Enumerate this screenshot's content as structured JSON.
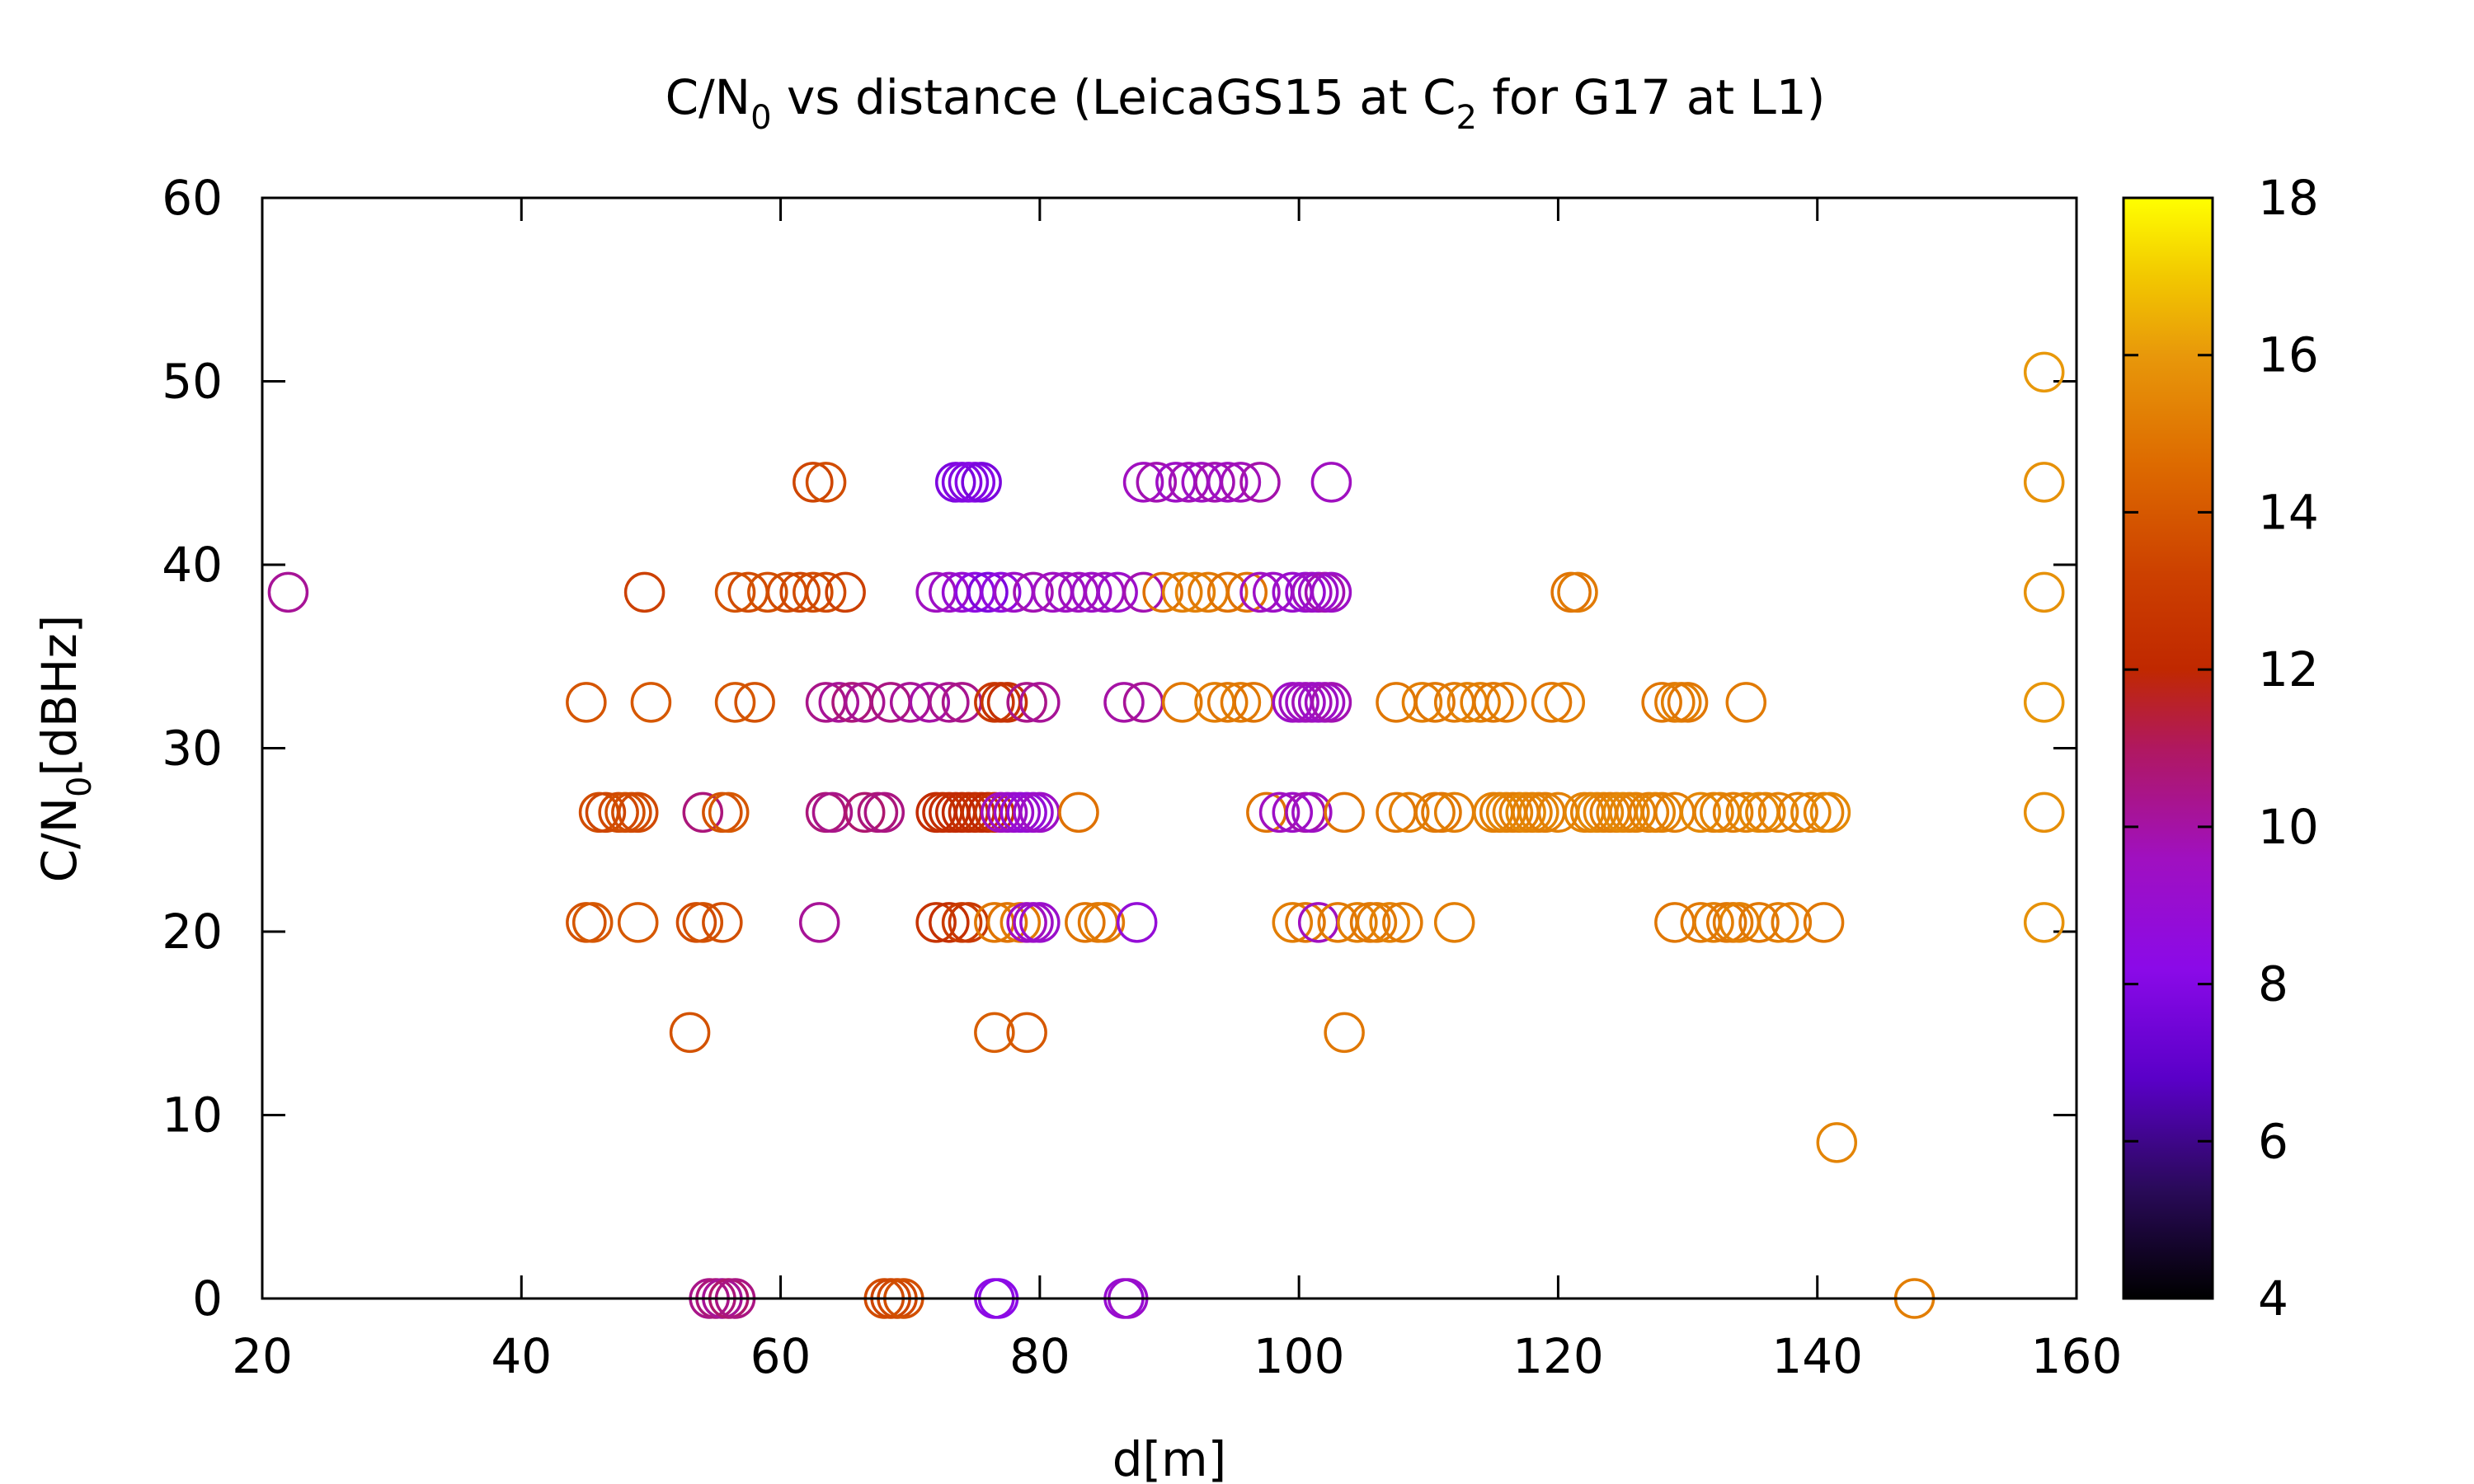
{
  "chart_data": {
    "type": "scatter",
    "title": {
      "pre": "C/N",
      "sub": "0",
      "mid": " vs distance (LeicaGS15 at C",
      "sub2": "2",
      "post": " for G17 at L1)"
    },
    "xlabel": "d[m]",
    "ylabel": {
      "pre": "C/N",
      "sub": "0",
      "post": "[dBHz]"
    },
    "xlim": [
      20,
      160
    ],
    "ylim": [
      0,
      60
    ],
    "xticks": [
      20,
      40,
      60,
      80,
      100,
      120,
      140,
      160
    ],
    "yticks": [
      0,
      10,
      20,
      30,
      40,
      50,
      60
    ],
    "marker": "open-circle",
    "colorbar": {
      "range": [
        4,
        18
      ],
      "ticks": [
        4,
        6,
        8,
        10,
        12,
        14,
        16,
        18
      ],
      "palette": [
        [
          4,
          "#000000"
        ],
        [
          5.4,
          "#2a0a5a"
        ],
        [
          6.8,
          "#5a00c8"
        ],
        [
          8.2,
          "#8b0ae8"
        ],
        [
          9.6,
          "#a010c0"
        ],
        [
          11,
          "#b01860"
        ],
        [
          12,
          "#c02800"
        ],
        [
          13.2,
          "#cc4000"
        ],
        [
          14.6,
          "#dd6a00"
        ],
        [
          16,
          "#e8980a"
        ],
        [
          17,
          "#f2c800"
        ],
        [
          18,
          "#ffff00"
        ]
      ]
    },
    "points": [
      [
        22,
        38.5,
        10.2
      ],
      [
        49.5,
        38.5,
        13.2
      ],
      [
        56.5,
        38.5,
        13.8
      ],
      [
        57.5,
        38.5,
        13.6
      ],
      [
        59,
        38.5,
        13.7
      ],
      [
        60.5,
        38.5,
        13.6
      ],
      [
        61.5,
        38.5,
        13.4
      ],
      [
        62.5,
        38.5,
        13.6
      ],
      [
        63.5,
        38.5,
        13.5
      ],
      [
        65,
        38.5,
        13.2
      ],
      [
        72,
        38.5,
        9.6
      ],
      [
        73,
        38.5,
        9.4
      ],
      [
        74,
        38.5,
        9.0
      ],
      [
        75,
        38.5,
        8.4
      ],
      [
        76,
        38.5,
        7.8
      ],
      [
        77,
        38.5,
        8.6
      ],
      [
        78,
        38.5,
        9.4
      ],
      [
        79.5,
        38.5,
        9.8
      ],
      [
        81,
        38.5,
        9.6
      ],
      [
        82,
        38.5,
        9.5
      ],
      [
        83,
        38.5,
        9.6
      ],
      [
        84,
        38.5,
        9.4
      ],
      [
        85,
        38.5,
        9.6
      ],
      [
        86,
        38.5,
        9.3
      ],
      [
        88,
        38.5,
        9.8
      ],
      [
        89.5,
        38.5,
        14.8
      ],
      [
        91,
        38.5,
        15.2
      ],
      [
        92,
        38.5,
        15.3
      ],
      [
        93,
        38.5,
        15.1
      ],
      [
        94.5,
        38.5,
        14.8
      ],
      [
        96,
        38.5,
        14.9
      ],
      [
        97,
        38.5,
        9.6
      ],
      [
        98,
        38.5,
        9.4
      ],
      [
        99.5,
        38.5,
        9.2
      ],
      [
        100.5,
        38.5,
        9.0
      ],
      [
        101,
        38.5,
        9.5
      ],
      [
        101.5,
        38.5,
        9.2
      ],
      [
        102,
        38.5,
        9.8
      ],
      [
        102.5,
        38.5,
        9.4
      ],
      [
        121,
        38.5,
        14.9
      ],
      [
        121.5,
        38.5,
        15.1
      ],
      [
        157.5,
        50.5,
        16.0
      ],
      [
        157.5,
        44.5,
        15.8
      ],
      [
        157.5,
        38.5,
        15.8
      ],
      [
        157.5,
        32.5,
        15.9
      ],
      [
        157.5,
        26.5,
        15.7
      ],
      [
        157.5,
        20.5,
        15.8
      ],
      [
        62.5,
        44.5,
        13.4
      ],
      [
        63.5,
        44.5,
        13.6
      ],
      [
        73.5,
        44.5,
        7.8
      ],
      [
        74,
        44.5,
        8.0
      ],
      [
        74.5,
        44.5,
        7.9
      ],
      [
        75,
        44.5,
        8.1
      ],
      [
        75.5,
        44.5,
        7.7
      ],
      [
        88,
        44.5,
        9.6
      ],
      [
        89,
        44.5,
        9.8
      ],
      [
        90.5,
        44.5,
        9.4
      ],
      [
        91.5,
        44.5,
        9.7
      ],
      [
        92.5,
        44.5,
        9.5
      ],
      [
        93.5,
        44.5,
        9.8
      ],
      [
        94.5,
        44.5,
        9.6
      ],
      [
        95.5,
        44.5,
        9.7
      ],
      [
        97,
        44.5,
        9.9
      ],
      [
        102.5,
        44.5,
        9.6
      ],
      [
        45,
        32.5,
        13.9
      ],
      [
        50,
        32.5,
        14.0
      ],
      [
        56.5,
        32.5,
        14.0
      ],
      [
        58,
        32.5,
        13.8
      ],
      [
        63.5,
        32.5,
        10.4
      ],
      [
        64.5,
        32.5,
        10.2
      ],
      [
        65.5,
        32.5,
        10.6
      ],
      [
        66.5,
        32.5,
        10.3
      ],
      [
        68.5,
        32.5,
        10.5
      ],
      [
        70,
        32.5,
        10.2
      ],
      [
        71.5,
        32.5,
        10.0
      ],
      [
        73,
        32.5,
        10.3
      ],
      [
        74,
        32.5,
        10.4
      ],
      [
        76.5,
        32.5,
        12.8
      ],
      [
        77,
        32.5,
        12.6
      ],
      [
        77.5,
        32.5,
        12.5
      ],
      [
        79,
        32.5,
        10.4
      ],
      [
        80,
        32.5,
        10.2
      ],
      [
        86.5,
        32.5,
        10.0
      ],
      [
        88,
        32.5,
        10.2
      ],
      [
        91,
        32.5,
        15.0
      ],
      [
        93.5,
        32.5,
        15.2
      ],
      [
        94.5,
        32.5,
        15.0
      ],
      [
        95.5,
        32.5,
        15.1
      ],
      [
        96.5,
        32.5,
        14.9
      ],
      [
        99.5,
        32.5,
        9.4
      ],
      [
        100,
        32.5,
        9.6
      ],
      [
        100.5,
        32.5,
        9.5
      ],
      [
        101,
        32.5,
        9.7
      ],
      [
        101.5,
        32.5,
        9.4
      ],
      [
        102,
        32.5,
        9.6
      ],
      [
        102.5,
        32.5,
        9.8
      ],
      [
        107.5,
        32.5,
        15.0
      ],
      [
        109.5,
        32.5,
        15.2
      ],
      [
        110.5,
        32.5,
        15.0
      ],
      [
        112,
        32.5,
        15.1
      ],
      [
        113,
        32.5,
        15.3
      ],
      [
        114,
        32.5,
        15.2
      ],
      [
        115,
        32.5,
        15.0
      ],
      [
        116,
        32.5,
        15.1
      ],
      [
        119.5,
        32.5,
        15.0
      ],
      [
        120.5,
        32.5,
        15.2
      ],
      [
        128,
        32.5,
        15.0
      ],
      [
        129,
        32.5,
        15.1
      ],
      [
        129.5,
        32.5,
        15.2
      ],
      [
        130,
        32.5,
        15.0
      ],
      [
        134.5,
        32.5,
        15.1
      ],
      [
        46,
        26.5,
        13.6
      ],
      [
        46.5,
        26.5,
        13.4
      ],
      [
        47.5,
        26.5,
        13.5
      ],
      [
        48,
        26.5,
        13.7
      ],
      [
        48.5,
        26.5,
        13.6
      ],
      [
        49,
        26.5,
        13.5
      ],
      [
        54,
        26.5,
        10.6
      ],
      [
        55.5,
        26.5,
        13.8
      ],
      [
        56,
        26.5,
        14.0
      ],
      [
        63.5,
        26.5,
        10.6
      ],
      [
        64,
        26.5,
        10.4
      ],
      [
        66.5,
        26.5,
        10.8
      ],
      [
        67.5,
        26.5,
        10.6
      ],
      [
        68,
        26.5,
        10.5
      ],
      [
        72,
        26.5,
        12.2
      ],
      [
        72.5,
        26.5,
        12.4
      ],
      [
        73,
        26.5,
        12.3
      ],
      [
        73.5,
        26.5,
        12.2
      ],
      [
        74,
        26.5,
        12.1
      ],
      [
        74.5,
        26.5,
        12.3
      ],
      [
        75,
        26.5,
        12.2
      ],
      [
        75.5,
        26.5,
        12.4
      ],
      [
        76,
        26.5,
        12.0
      ],
      [
        76.5,
        26.5,
        12.5
      ],
      [
        77,
        26.5,
        9.6
      ],
      [
        77.5,
        26.5,
        9.4
      ],
      [
        78,
        26.5,
        9.2
      ],
      [
        78.5,
        26.5,
        9.0
      ],
      [
        79,
        26.5,
        8.8
      ],
      [
        79.5,
        26.5,
        9.1
      ],
      [
        80,
        26.5,
        9.4
      ],
      [
        83,
        26.5,
        14.8
      ],
      [
        97.5,
        26.5,
        14.9
      ],
      [
        98.5,
        26.5,
        9.6
      ],
      [
        99.5,
        26.5,
        9.4
      ],
      [
        100.5,
        26.5,
        9.8
      ],
      [
        101,
        26.5,
        9.5
      ],
      [
        103.5,
        26.5,
        14.9
      ],
      [
        107.5,
        26.5,
        15.0
      ],
      [
        108.5,
        26.5,
        15.2
      ],
      [
        110.5,
        26.5,
        15.1
      ],
      [
        111,
        26.5,
        15.0
      ],
      [
        112,
        26.5,
        15.2
      ],
      [
        115,
        26.5,
        15.3
      ],
      [
        115.5,
        26.5,
        15.2
      ],
      [
        116,
        26.5,
        15.4
      ],
      [
        116.5,
        26.5,
        15.3
      ],
      [
        117,
        26.5,
        15.2
      ],
      [
        117.5,
        26.5,
        15.5
      ],
      [
        118,
        26.5,
        15.3
      ],
      [
        118.5,
        26.5,
        15.4
      ],
      [
        119,
        26.5,
        15.2
      ],
      [
        120,
        26.5,
        15.3
      ],
      [
        122,
        26.5,
        15.4
      ],
      [
        122.5,
        26.5,
        15.3
      ],
      [
        123,
        26.5,
        15.5
      ],
      [
        123.5,
        26.5,
        15.4
      ],
      [
        124,
        26.5,
        15.2
      ],
      [
        124.5,
        26.5,
        15.3
      ],
      [
        125,
        26.5,
        15.5
      ],
      [
        125.5,
        26.5,
        15.4
      ],
      [
        126,
        26.5,
        15.3
      ],
      [
        127,
        26.5,
        15.2
      ],
      [
        127.5,
        26.5,
        15.4
      ],
      [
        128,
        26.5,
        15.3
      ],
      [
        129,
        26.5,
        15.2
      ],
      [
        131,
        26.5,
        15.5
      ],
      [
        132,
        26.5,
        15.3
      ],
      [
        132.5,
        26.5,
        15.4
      ],
      [
        133.5,
        26.5,
        15.2
      ],
      [
        134.5,
        26.5,
        15.3
      ],
      [
        135.5,
        26.5,
        15.5
      ],
      [
        136,
        26.5,
        15.4
      ],
      [
        137,
        26.5,
        15.3
      ],
      [
        138.5,
        26.5,
        15.2
      ],
      [
        139.5,
        26.5,
        15.4
      ],
      [
        140.5,
        26.5,
        15.3
      ],
      [
        141,
        26.5,
        15.5
      ],
      [
        45,
        20.5,
        13.8
      ],
      [
        45.5,
        20.5,
        14.0
      ],
      [
        49,
        20.5,
        14.0
      ],
      [
        53.5,
        20.5,
        13.6
      ],
      [
        54,
        20.5,
        13.8
      ],
      [
        55.5,
        20.5,
        13.7
      ],
      [
        63,
        20.5,
        10.2
      ],
      [
        72,
        20.5,
        12.6
      ],
      [
        73,
        20.5,
        12.4
      ],
      [
        74,
        20.5,
        13.0
      ],
      [
        74.5,
        20.5,
        12.8
      ],
      [
        76.5,
        20.5,
        15.0
      ],
      [
        77.5,
        20.5,
        14.9
      ],
      [
        78.5,
        20.5,
        15.1
      ],
      [
        79,
        20.5,
        9.6
      ],
      [
        79.5,
        20.5,
        9.4
      ],
      [
        80,
        20.5,
        9.2
      ],
      [
        83.5,
        20.5,
        14.9
      ],
      [
        84.5,
        20.5,
        15.0
      ],
      [
        85,
        20.5,
        15.1
      ],
      [
        87.5,
        20.5,
        8.8
      ],
      [
        99.5,
        20.5,
        15.2
      ],
      [
        100.5,
        20.5,
        15.0
      ],
      [
        101.5,
        20.5,
        9.6
      ],
      [
        103,
        20.5,
        15.1
      ],
      [
        104.5,
        20.5,
        15.2
      ],
      [
        105.5,
        20.5,
        15.0
      ],
      [
        106,
        20.5,
        15.1
      ],
      [
        107,
        20.5,
        15.3
      ],
      [
        108,
        20.5,
        15.1
      ],
      [
        112,
        20.5,
        15.2
      ],
      [
        129,
        20.5,
        15.0
      ],
      [
        131,
        20.5,
        15.1
      ],
      [
        132,
        20.5,
        15.2
      ],
      [
        133,
        20.5,
        15.0
      ],
      [
        133.5,
        20.5,
        15.1
      ],
      [
        134,
        20.5,
        15.3
      ],
      [
        135.5,
        20.5,
        15.0
      ],
      [
        137,
        20.5,
        15.2
      ],
      [
        138,
        20.5,
        15.1
      ],
      [
        140.5,
        20.5,
        15.0
      ],
      [
        53,
        14.5,
        13.8
      ],
      [
        76.5,
        14.5,
        14.2
      ],
      [
        79,
        14.5,
        14.0
      ],
      [
        103.5,
        14.5,
        15.0
      ],
      [
        141.5,
        8.5,
        15.4
      ],
      [
        54.5,
        0,
        10.4
      ],
      [
        55,
        0,
        10.6
      ],
      [
        55.5,
        0,
        10.2
      ],
      [
        56,
        0,
        10.8
      ],
      [
        56.5,
        0,
        10.5
      ],
      [
        68,
        0,
        13.6
      ],
      [
        68.5,
        0,
        13.4
      ],
      [
        69,
        0,
        13.5
      ],
      [
        69.5,
        0,
        13.7
      ],
      [
        76.5,
        0,
        8.4
      ],
      [
        76.8,
        0,
        8.2
      ],
      [
        86.5,
        0,
        9.0
      ],
      [
        86.8,
        0,
        9.2
      ],
      [
        147.5,
        0,
        15.2
      ]
    ]
  }
}
